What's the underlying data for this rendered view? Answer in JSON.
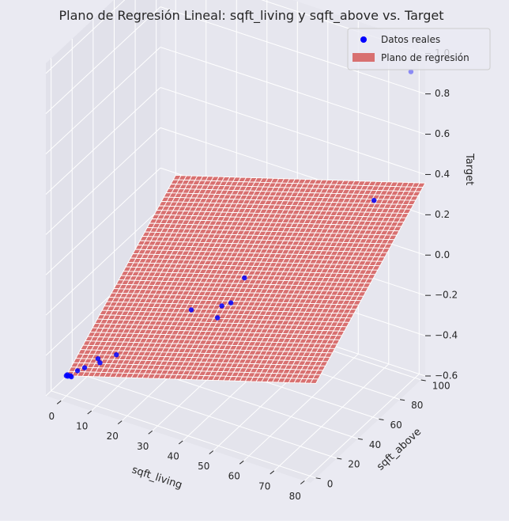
{
  "chart_data": {
    "type": "scatter",
    "projection": "3d",
    "title": "Plano de Regresión Lineal: sqft_living y sqft_above vs. Target",
    "xlabel": "sqft_living",
    "ylabel": "sqft_above",
    "zlabel": "Target",
    "xlim": [
      -5,
      82
    ],
    "ylim": [
      -5,
      104
    ],
    "zlim": [
      -0.6,
      1.05
    ],
    "x_ticks": [
      "0",
      "10",
      "20",
      "30",
      "40",
      "50",
      "60",
      "70",
      "80"
    ],
    "y_ticks": [
      "0",
      "20",
      "40",
      "60",
      "80",
      "100"
    ],
    "z_ticks": [
      "−0.6",
      "−0.4",
      "−0.2",
      "0.0",
      "0.2",
      "0.4",
      "0.6",
      "0.8",
      "1.0"
    ],
    "grid": true,
    "legend_position": "top-right",
    "series": [
      {
        "name": "Datos reales",
        "kind": "scatter",
        "color": "#0000ff",
        "points": [
          {
            "x": 0,
            "y": 0,
            "z": -0.5
          },
          {
            "x": 0.5,
            "y": 0,
            "z": -0.5
          },
          {
            "x": 1,
            "y": 1,
            "z": -0.5
          },
          {
            "x": 0,
            "y": 1,
            "z": -0.5
          },
          {
            "x": 1.5,
            "y": 0.5,
            "z": -0.5
          },
          {
            "x": 3,
            "y": 2,
            "z": -0.47
          },
          {
            "x": 5,
            "y": 3,
            "z": -0.45
          },
          {
            "x": 9,
            "y": 6,
            "z": -0.42
          },
          {
            "x": 8,
            "y": 7,
            "z": -0.41
          },
          {
            "x": 13,
            "y": 10,
            "z": -0.38
          },
          {
            "x": 30,
            "y": 32,
            "z": -0.18
          },
          {
            "x": 40,
            "y": 28,
            "z": -0.15
          },
          {
            "x": 39,
            "y": 35,
            "z": -0.13
          },
          {
            "x": 42,
            "y": 35,
            "z": -0.1
          },
          {
            "x": 43,
            "y": 45,
            "z": -0.02
          },
          {
            "x": 70,
            "y": 90,
            "z": 0.28
          },
          {
            "x": 78,
            "y": 102,
            "z": 0.9
          }
        ]
      },
      {
        "name": "Plano de regresión",
        "kind": "surface",
        "color": "#d87070",
        "plane": {
          "z0": -0.5,
          "dzdx": 0.0045,
          "dzdy": 0.0047
        },
        "x_range": [
          0,
          82
        ],
        "y_range": [
          0,
          104
        ],
        "grid_n": 46
      }
    ]
  }
}
